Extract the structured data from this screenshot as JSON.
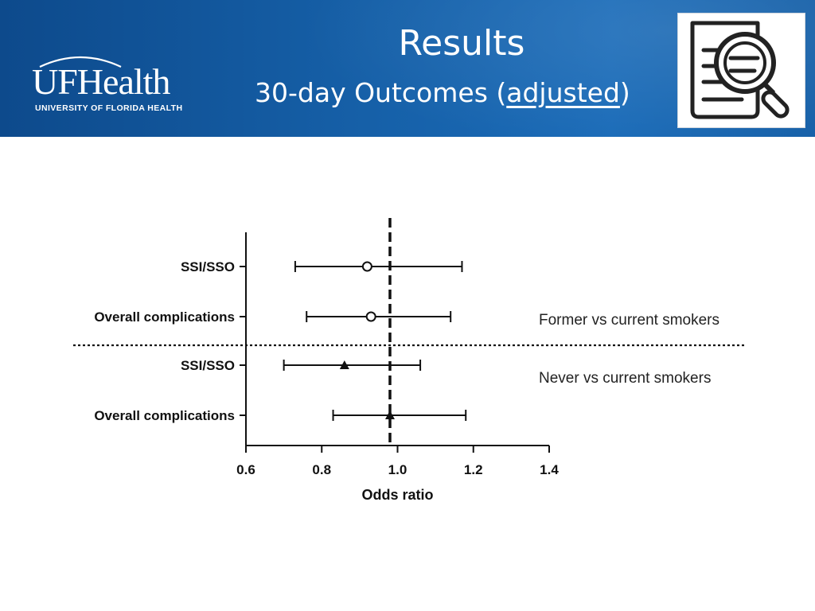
{
  "header": {
    "logo_text": "UFHealth",
    "logo_subtitle": "UNIVERSITY OF FLORIDA HEALTH",
    "title": "Results",
    "subtitle_before": "30-day Outcomes (",
    "subtitle_underlined": "adjusted",
    "subtitle_after": ")",
    "thumbnail_icon": "document-magnifier-icon",
    "background_color": "#1660a8",
    "text_color": "#ffffff"
  },
  "chart_data": {
    "type": "forest",
    "xlabel": "Odds ratio",
    "xlim": [
      0.6,
      1.4
    ],
    "xticks": [
      "0.6",
      "0.8",
      "1.0",
      "1.2",
      "1.4"
    ],
    "reference_line": 0.98,
    "rows": [
      {
        "label": "SSI/SSO",
        "group": 0,
        "estimate": 0.92,
        "ci_low": 0.73,
        "ci_high": 1.17,
        "marker": "circle"
      },
      {
        "label": "Overall complications",
        "group": 0,
        "estimate": 0.93,
        "ci_low": 0.76,
        "ci_high": 1.14,
        "marker": "circle"
      },
      {
        "label": "SSI/SSO",
        "group": 1,
        "estimate": 0.86,
        "ci_low": 0.7,
        "ci_high": 1.06,
        "marker": "triangle"
      },
      {
        "label": "Overall complications",
        "group": 1,
        "estimate": 0.98,
        "ci_low": 0.83,
        "ci_high": 1.18,
        "marker": "triangle"
      }
    ],
    "groups": [
      {
        "name": "Former vs current smokers"
      },
      {
        "name": "Never vs current smokers"
      }
    ],
    "grid": false
  }
}
